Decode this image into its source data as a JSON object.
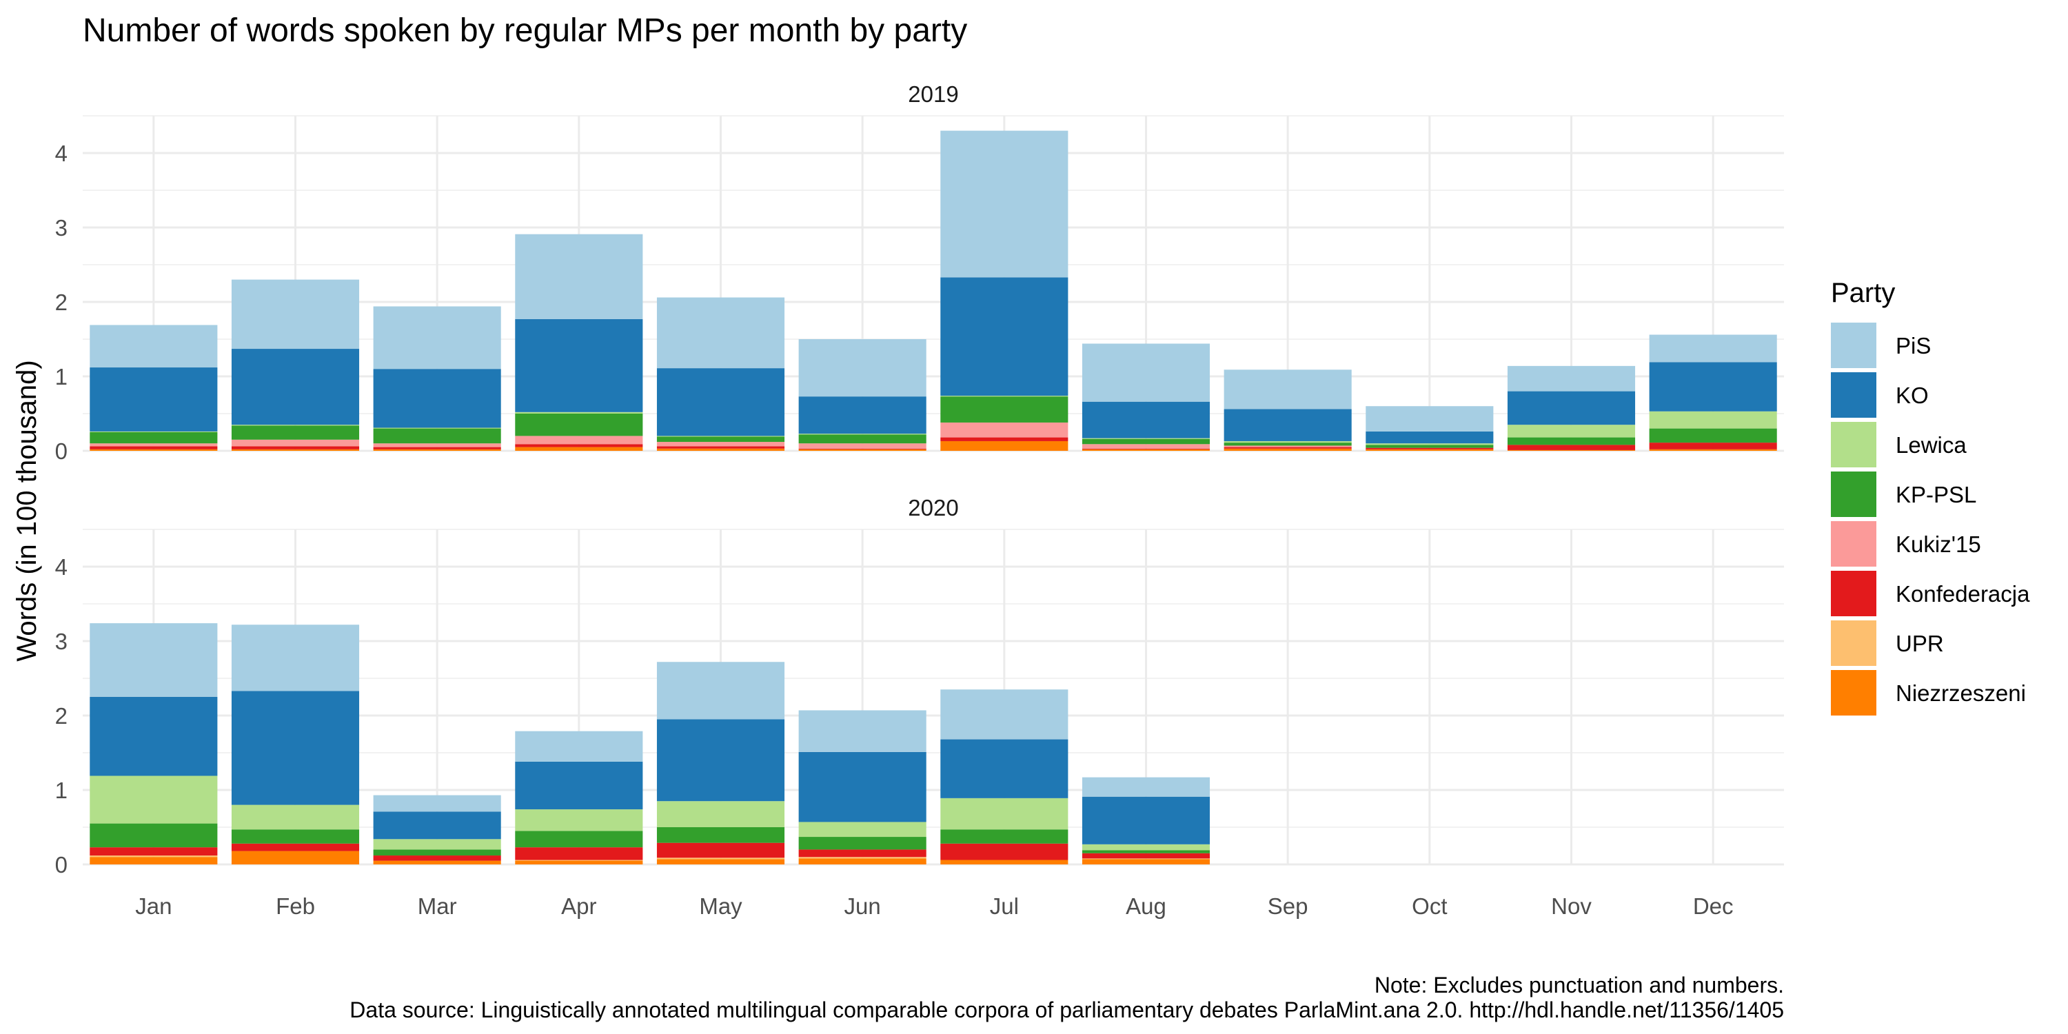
{
  "chart_data": {
    "type": "bar",
    "stacked": true,
    "title": "Number of words spoken by regular MPs per month by party",
    "ylabel": "Words (in 100 thousand)",
    "xlabel": "",
    "ylim": [
      0,
      4.5
    ],
    "yticks": [
      "0",
      "1",
      "2",
      "3",
      "4"
    ],
    "grid": true,
    "legend_position": "right",
    "legend_title": "Party",
    "categories": [
      "Jan",
      "Feb",
      "Mar",
      "Apr",
      "May",
      "Jun",
      "Jul",
      "Aug",
      "Sep",
      "Oct",
      "Nov",
      "Dec"
    ],
    "series": [
      {
        "name": "PiS",
        "color": "#a6cee3"
      },
      {
        "name": "KO",
        "color": "#1f78b4"
      },
      {
        "name": "Lewica",
        "color": "#b2df8a"
      },
      {
        "name": "KP-PSL",
        "color": "#33a02c"
      },
      {
        "name": "Kukiz'15",
        "color": "#fb9a99"
      },
      {
        "name": "Konfederacja",
        "color": "#e31a1c"
      },
      {
        "name": "UPR",
        "color": "#fdbf6f"
      },
      {
        "name": "Niezrzeszeni",
        "color": "#ff7f00"
      }
    ],
    "panels": [
      {
        "label": "2019",
        "values": {
          "PiS": [
            0.57,
            0.93,
            0.84,
            1.14,
            0.95,
            0.77,
            1.97,
            0.78,
            0.53,
            0.34,
            0.34,
            0.37
          ],
          "KO": [
            0.86,
            1.02,
            0.79,
            1.25,
            0.91,
            0.5,
            1.59,
            0.49,
            0.43,
            0.16,
            0.45,
            0.66
          ],
          "Lewica": [
            0.01,
            0.01,
            0.01,
            0.02,
            0.01,
            0.01,
            0.01,
            0.01,
            0.02,
            0.02,
            0.17,
            0.23
          ],
          "KP-PSL": [
            0.15,
            0.19,
            0.2,
            0.3,
            0.07,
            0.12,
            0.35,
            0.07,
            0.04,
            0.04,
            0.1,
            0.19
          ],
          "Kukiz'15": [
            0.04,
            0.09,
            0.05,
            0.11,
            0.06,
            0.07,
            0.2,
            0.06,
            0.02,
            0.0,
            0.0,
            0.0
          ],
          "Konfederacja": [
            0.04,
            0.04,
            0.03,
            0.04,
            0.03,
            0.01,
            0.05,
            0.01,
            0.02,
            0.02,
            0.07,
            0.09
          ],
          "UPR": [
            0.0,
            0.0,
            0.0,
            0.0,
            0.0,
            0.0,
            0.0,
            0.0,
            0.0,
            0.0,
            0.0,
            0.0
          ],
          "Niezrzeszeni": [
            0.02,
            0.02,
            0.02,
            0.05,
            0.03,
            0.02,
            0.13,
            0.02,
            0.03,
            0.02,
            0.01,
            0.02
          ]
        }
      },
      {
        "label": "2020",
        "values": {
          "PiS": [
            0.99,
            0.89,
            0.22,
            0.41,
            0.77,
            0.56,
            0.67,
            0.26,
            0,
            0,
            0,
            0
          ],
          "KO": [
            1.06,
            1.53,
            0.37,
            0.64,
            1.1,
            0.94,
            0.79,
            0.64,
            0,
            0,
            0,
            0
          ],
          "Lewica": [
            0.64,
            0.33,
            0.14,
            0.29,
            0.35,
            0.2,
            0.42,
            0.08,
            0,
            0,
            0,
            0
          ],
          "KP-PSL": [
            0.32,
            0.19,
            0.08,
            0.22,
            0.21,
            0.17,
            0.19,
            0.04,
            0,
            0,
            0,
            0
          ],
          "Kukiz'15": [
            0.0,
            0.0,
            0.0,
            0.0,
            0.0,
            0.0,
            0.0,
            0.0,
            0,
            0,
            0,
            0
          ],
          "Konfederacja": [
            0.11,
            0.1,
            0.07,
            0.17,
            0.2,
            0.1,
            0.22,
            0.07,
            0,
            0,
            0,
            0
          ],
          "UPR": [
            0.02,
            0.0,
            0.0,
            0.01,
            0.02,
            0.02,
            0.0,
            0.01,
            0,
            0,
            0,
            0
          ],
          "Niezrzeszeni": [
            0.1,
            0.18,
            0.05,
            0.05,
            0.07,
            0.08,
            0.06,
            0.07,
            0,
            0,
            0,
            0
          ]
        }
      }
    ],
    "caption": [
      "Note: Excludes punctuation and numbers.",
      "Data source: Linguistically annotated multilingual comparable corpora of parliamentary debates ParlaMint.ana 2.0. http://hdl.handle.net/11356/1405"
    ]
  }
}
